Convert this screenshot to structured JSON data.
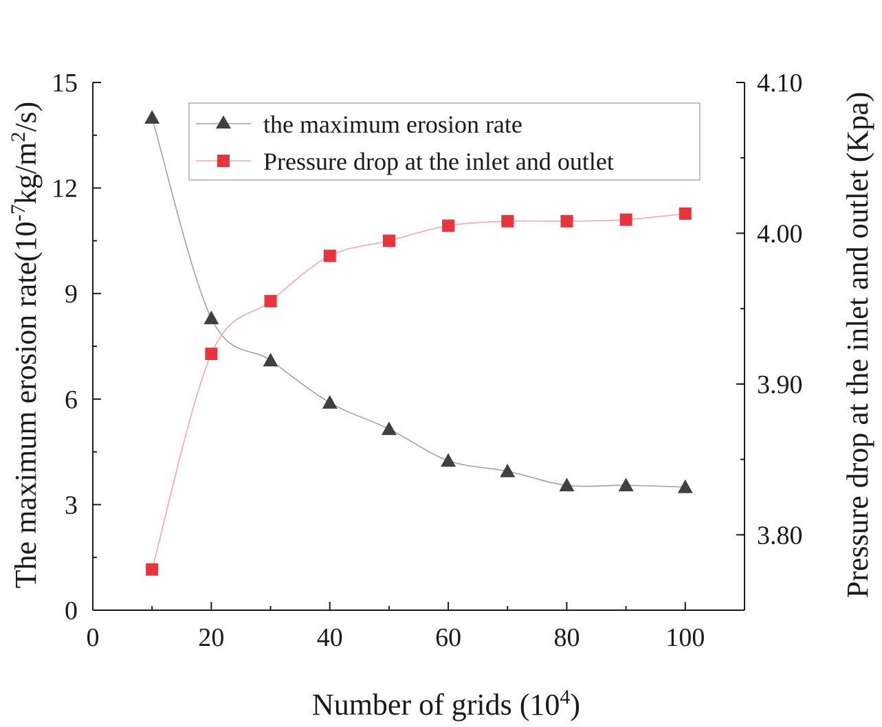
{
  "chart_data": {
    "type": "line",
    "x": [
      10,
      20,
      30,
      40,
      50,
      60,
      70,
      80,
      90,
      100
    ],
    "xlim": [
      0,
      110
    ],
    "x_ticks": [
      "0",
      "20",
      "40",
      "60",
      "80",
      "100"
    ],
    "xlabel": "Number of grids (10",
    "xlabel_sup": "4",
    "xlabel_end": ")",
    "ylabel_left": {
      "pre": "The maximum erosion rate(10",
      "sup1": "-7",
      "mid": "kg/m",
      "sup2": "2",
      "post": "/s)"
    },
    "ylim_left": [
      0,
      15
    ],
    "y_ticks_left": [
      "0",
      "3",
      "6",
      "9",
      "12",
      "15"
    ],
    "ylabel_right": "Pressure drop at the inlet and outlet (Kpa)",
    "ylim_right": [
      3.75,
      4.1
    ],
    "y_ticks_right": [
      "3.80",
      "3.90",
      "4.00",
      "4.10"
    ],
    "legend_position": "top-center",
    "series": [
      {
        "name": "the maximum erosion rate",
        "axis": "left",
        "marker": "triangle",
        "marker_color": "#404040",
        "line_color": "#a0a0a0",
        "values": [
          14.0,
          8.3,
          7.1,
          5.9,
          5.15,
          4.25,
          3.95,
          3.55,
          3.55,
          3.5
        ]
      },
      {
        "name": "Pressure drop at the inlet and outlet",
        "axis": "right",
        "marker": "square",
        "marker_color": "#e8343c",
        "line_color": "#f4a7ab",
        "values": [
          3.777,
          3.92,
          3.955,
          3.985,
          3.995,
          4.005,
          4.008,
          4.008,
          4.009,
          4.013
        ]
      }
    ]
  }
}
